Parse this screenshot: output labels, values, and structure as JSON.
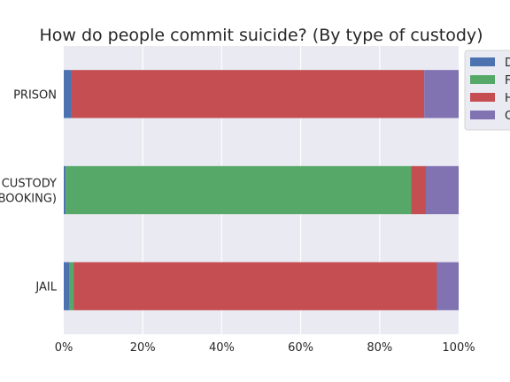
{
  "chart_data": {
    "type": "bar",
    "orientation": "horizontal",
    "stacked": true,
    "normalized": true,
    "title": "How do people commit suicide? (By type of custody)",
    "xlabel": "",
    "ylabel": "",
    "categories": [
      "PRISON",
      "CUSTODY\n(BOOKING)",
      "JAIL"
    ],
    "xlim": [
      0,
      1
    ],
    "x_ticks": [
      0,
      0.2,
      0.4,
      0.6,
      0.8,
      1.0
    ],
    "x_tick_labels": [
      "0%",
      "20%",
      "40%",
      "60%",
      "80%",
      "100%"
    ],
    "grid": true,
    "legend_position": "upper-right-outside",
    "series": [
      {
        "name": "D",
        "color": "#4c72b0",
        "values": [
          0.02,
          0.005,
          0.015
        ]
      },
      {
        "name": "F",
        "color": "#55a868",
        "values": [
          0.0,
          0.875,
          0.01
        ]
      },
      {
        "name": "H",
        "color": "#c44e52",
        "values": [
          0.893,
          0.037,
          0.92
        ]
      },
      {
        "name": "O",
        "color": "#8172b2",
        "values": [
          0.087,
          0.083,
          0.055
        ]
      }
    ]
  }
}
